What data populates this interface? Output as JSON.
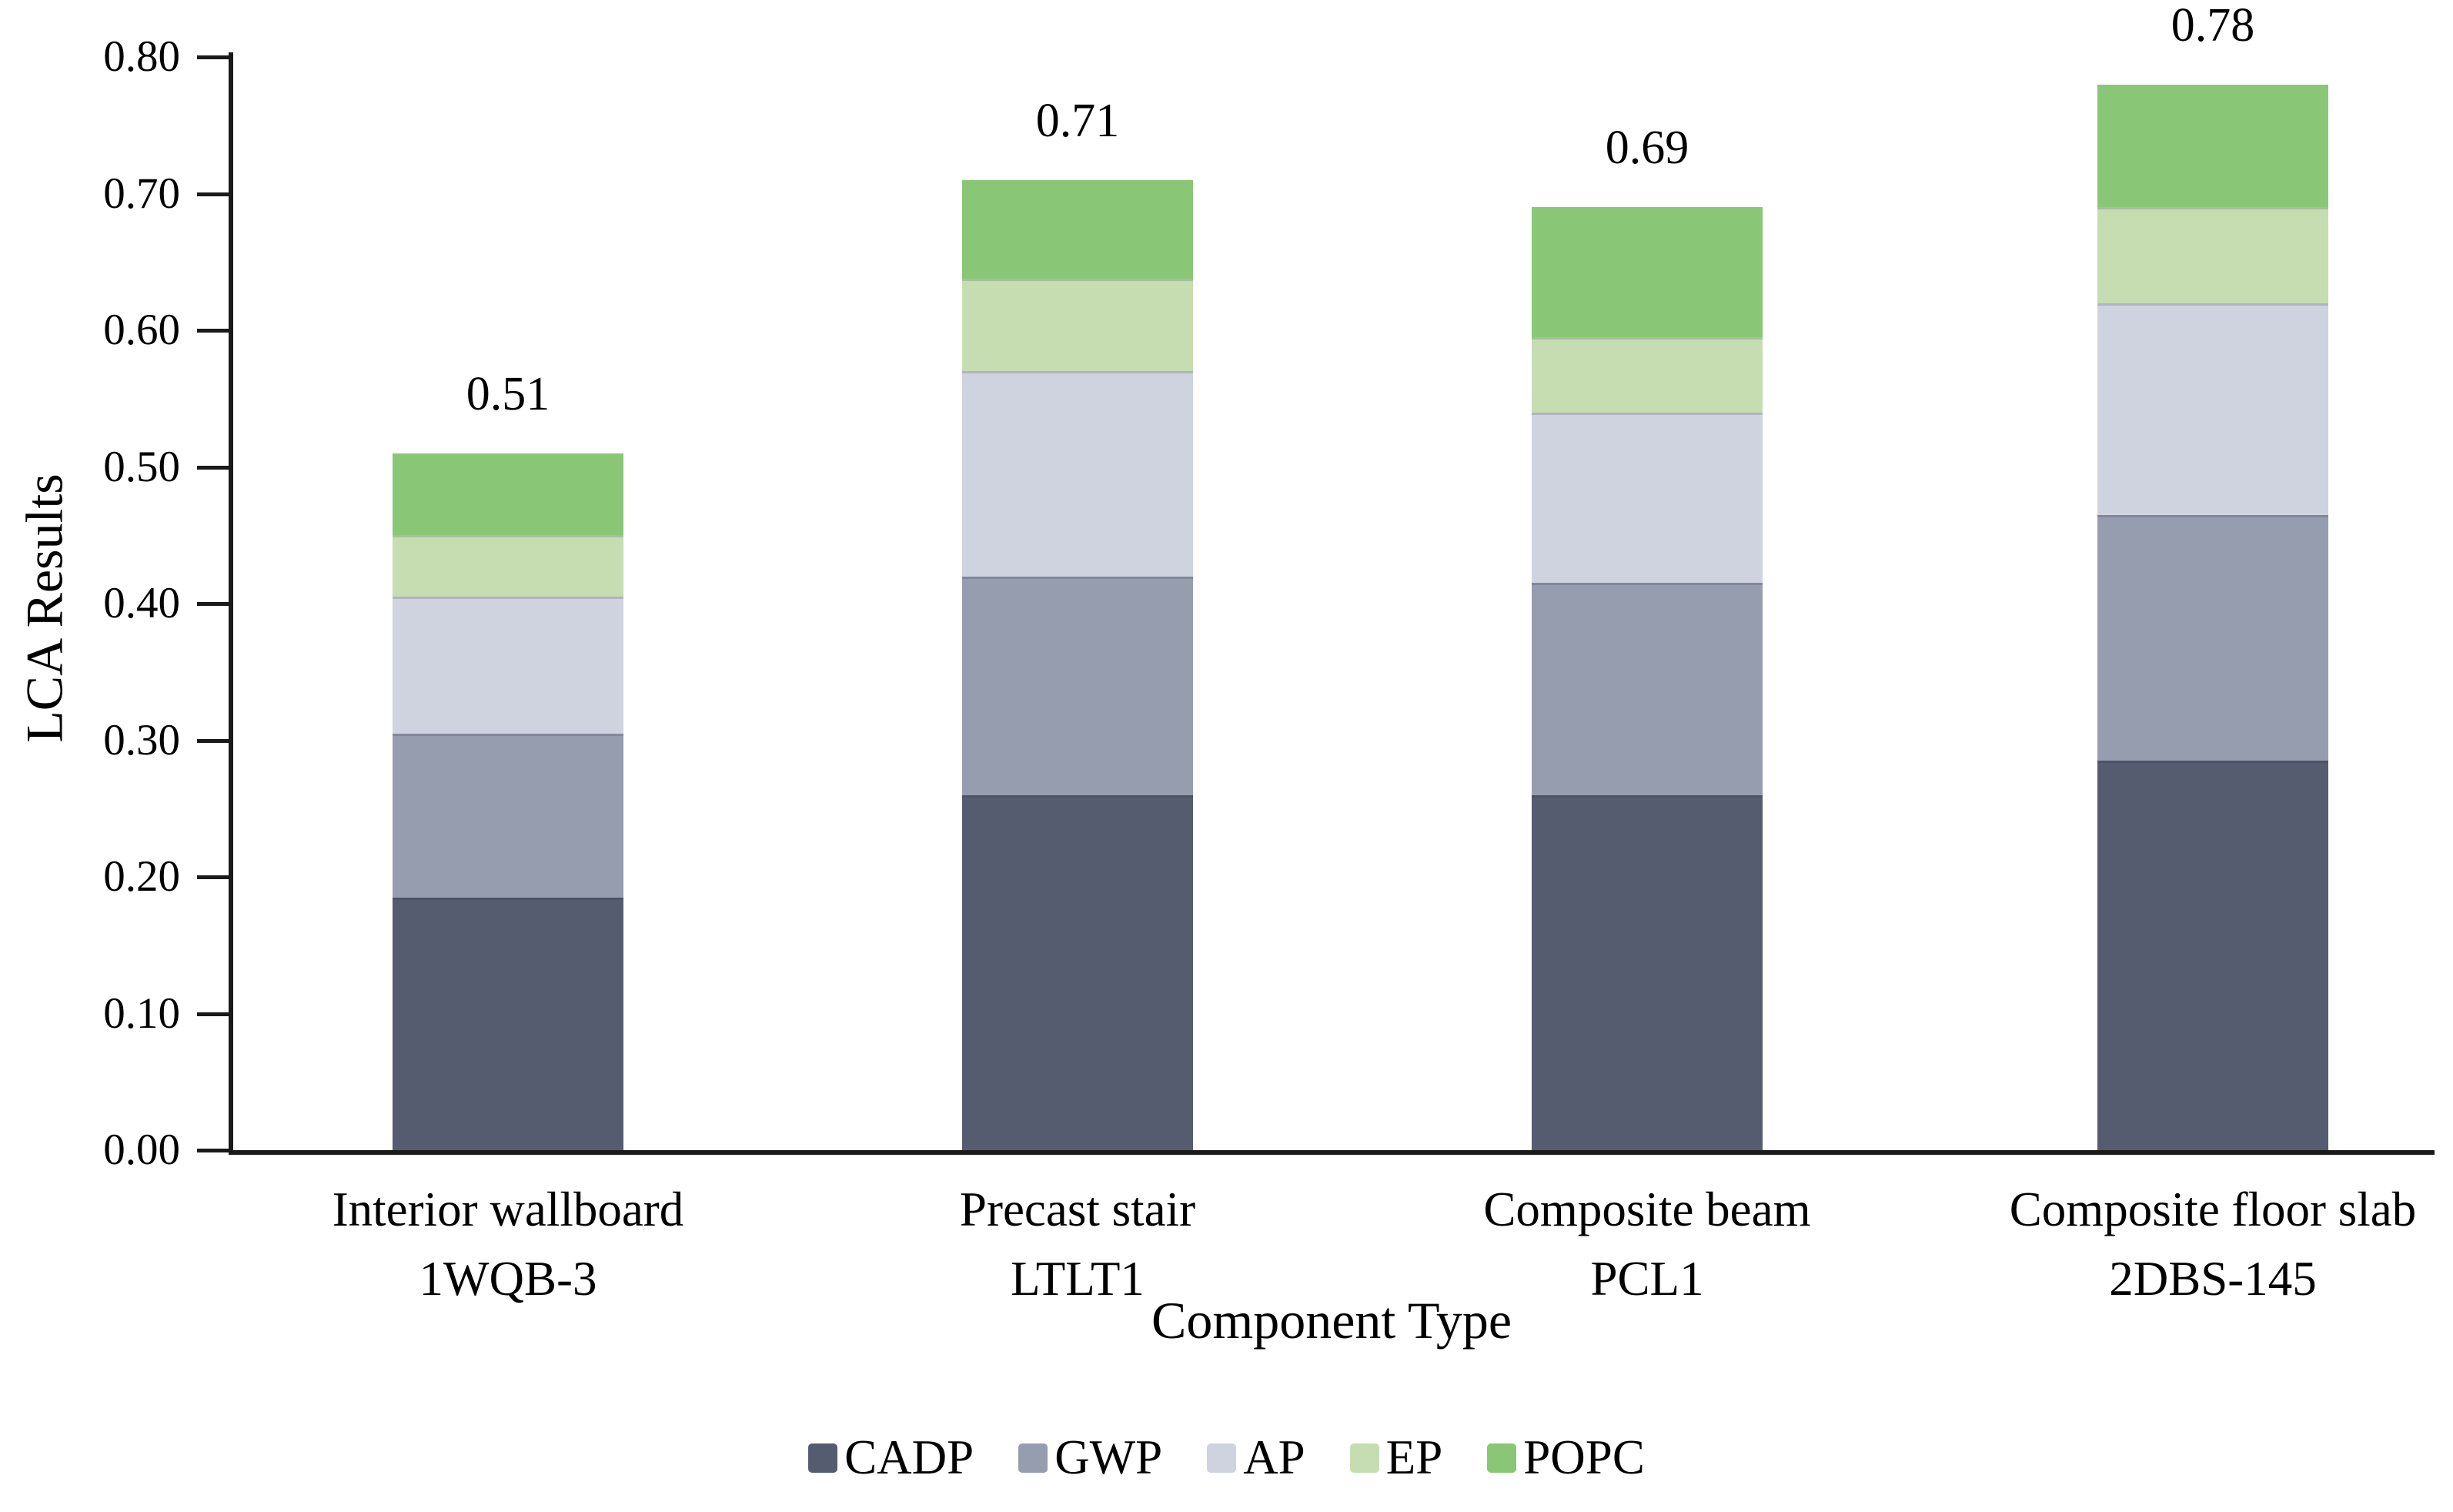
{
  "chart_data": {
    "type": "bar",
    "stacked": true,
    "title": "",
    "xlabel": "Component Type",
    "ylabel": "LCA Results",
    "ylim": [
      0,
      0.8
    ],
    "y_tick_step": 0.1,
    "y_tick_labels": [
      "0.00",
      "0.10",
      "0.20",
      "0.30",
      "0.40",
      "0.50",
      "0.60",
      "0.70",
      "0.80"
    ],
    "grid": false,
    "legend_position": "bottom",
    "categories": [
      {
        "line1": "Interior wallboard",
        "line2": "1WQB-3"
      },
      {
        "line1": "Precast stair",
        "line2": "LTLT1"
      },
      {
        "line1": "Composite beam",
        "line2": "PCL1"
      },
      {
        "line1": "Composite floor slab",
        "line2": "2DBS-145"
      }
    ],
    "series": [
      {
        "name": "CADP",
        "color": "#555C6F",
        "values": [
          0.185,
          0.26,
          0.26,
          0.285
        ]
      },
      {
        "name": "GWP",
        "color": "#969DAE",
        "values": [
          0.12,
          0.16,
          0.155,
          0.18
        ]
      },
      {
        "name": "AP",
        "color": "#CED3DF",
        "values": [
          0.1,
          0.15,
          0.125,
          0.155
        ]
      },
      {
        "name": "EP",
        "color": "#C5DDB1",
        "values": [
          0.045,
          0.068,
          0.055,
          0.07
        ]
      },
      {
        "name": "POPC",
        "color": "#89C777",
        "values": [
          0.06,
          0.072,
          0.095,
          0.09
        ]
      }
    ],
    "totals": [
      "0.51",
      "0.71",
      "0.69",
      "0.78"
    ]
  }
}
